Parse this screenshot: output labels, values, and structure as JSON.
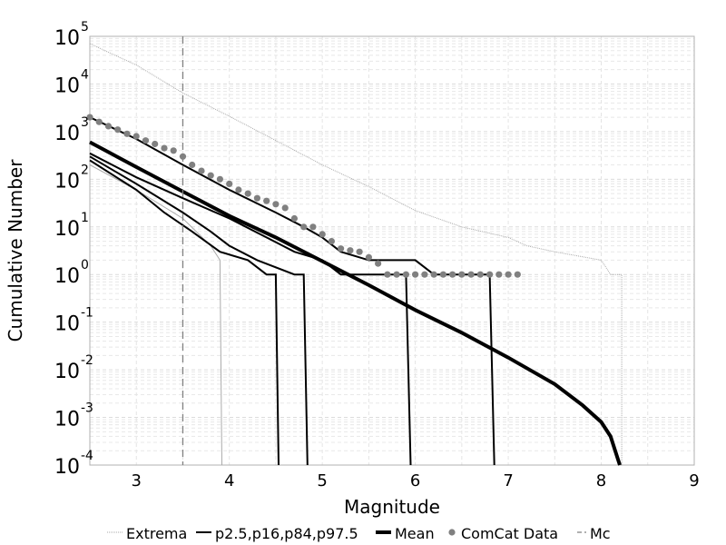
{
  "chart_data": {
    "type": "line",
    "title": "",
    "xlabel": "Magnitude",
    "ylabel": "Cumulative Number",
    "xlim": [
      2.5,
      9.0
    ],
    "ylim_log10": [
      -4,
      5
    ],
    "yscale": "log",
    "grid": true,
    "legend_placement": "bottom",
    "x_ticks": [
      "3",
      "4",
      "5",
      "6",
      "7",
      "8",
      "9"
    ],
    "y_ticks": [
      {
        "base": "10",
        "exp": "-4"
      },
      {
        "base": "10",
        "exp": "-3"
      },
      {
        "base": "10",
        "exp": "-2"
      },
      {
        "base": "10",
        "exp": "-1"
      },
      {
        "base": "10",
        "exp": "0"
      },
      {
        "base": "10",
        "exp": "1"
      },
      {
        "base": "10",
        "exp": "2"
      },
      {
        "base": "10",
        "exp": "3"
      },
      {
        "base": "10",
        "exp": "4"
      },
      {
        "base": "10",
        "exp": "5"
      }
    ],
    "legend": [
      "Extrema",
      "p2.5,p16,p84,p97.5",
      "Mean",
      "ComCat Data",
      "Mc"
    ],
    "colors": {
      "extrema": "#aaaaaa",
      "percentile": "#000000",
      "mean": "#000000",
      "comcat": "#808080",
      "mc": "#808080"
    },
    "mc": 3.5,
    "series": {
      "extrema_upper": [
        [
          2.5,
          70000
        ],
        [
          3.0,
          25000
        ],
        [
          3.5,
          6500
        ],
        [
          4.0,
          2100
        ],
        [
          4.5,
          650
        ],
        [
          5.0,
          200
        ],
        [
          5.5,
          70
        ],
        [
          6.0,
          22
        ],
        [
          6.5,
          10
        ],
        [
          7.0,
          6
        ],
        [
          7.2,
          4
        ],
        [
          7.5,
          3
        ],
        [
          8.0,
          2
        ],
        [
          8.1,
          1
        ],
        [
          8.22,
          1
        ],
        [
          8.22,
          0.0001
        ]
      ],
      "extrema_lower": [
        [
          2.5,
          200
        ],
        [
          3.0,
          60
        ],
        [
          3.5,
          15
        ],
        [
          3.8,
          4
        ],
        [
          3.9,
          2
        ],
        [
          3.92,
          0.0001
        ]
      ],
      "p97_5": [
        [
          2.5,
          2000
        ],
        [
          3.0,
          700
        ],
        [
          3.5,
          200
        ],
        [
          4.0,
          60
        ],
        [
          4.5,
          20
        ],
        [
          4.8,
          10
        ],
        [
          5.0,
          6
        ],
        [
          5.2,
          3
        ],
        [
          5.5,
          2
        ],
        [
          6.0,
          2
        ],
        [
          6.2,
          1
        ],
        [
          6.8,
          1
        ],
        [
          6.85,
          0.0001
        ]
      ],
      "p84": [
        [
          2.5,
          350
        ],
        [
          3.0,
          110
        ],
        [
          3.5,
          40
        ],
        [
          4.0,
          15
        ],
        [
          4.4,
          6
        ],
        [
          4.7,
          3
        ],
        [
          5.0,
          2
        ],
        [
          5.2,
          1
        ],
        [
          5.9,
          1
        ],
        [
          5.95,
          0.0001
        ]
      ],
      "p16": [
        [
          2.5,
          300
        ],
        [
          3.0,
          80
        ],
        [
          3.5,
          20
        ],
        [
          3.8,
          8
        ],
        [
          4.0,
          4
        ],
        [
          4.3,
          2
        ],
        [
          4.7,
          1
        ],
        [
          4.8,
          1
        ],
        [
          4.84,
          0.0001
        ]
      ],
      "p2_5": [
        [
          2.5,
          250
        ],
        [
          3.0,
          60
        ],
        [
          3.3,
          20
        ],
        [
          3.6,
          8
        ],
        [
          3.9,
          3
        ],
        [
          4.2,
          2
        ],
        [
          4.4,
          1
        ],
        [
          4.5,
          1
        ],
        [
          4.53,
          0.0001
        ]
      ],
      "mean": [
        [
          2.5,
          600
        ],
        [
          3.0,
          180
        ],
        [
          3.5,
          55
        ],
        [
          4.0,
          17
        ],
        [
          4.5,
          6
        ],
        [
          5.0,
          1.9
        ],
        [
          5.5,
          0.6
        ],
        [
          6.0,
          0.18
        ],
        [
          6.5,
          0.06
        ],
        [
          7.0,
          0.018
        ],
        [
          7.5,
          0.005
        ],
        [
          7.8,
          0.0018
        ],
        [
          8.0,
          0.0008
        ],
        [
          8.1,
          0.0004
        ],
        [
          8.15,
          0.0002
        ],
        [
          8.2,
          0.0001
        ]
      ],
      "comcat": [
        [
          2.5,
          2000
        ],
        [
          2.6,
          1600
        ],
        [
          2.7,
          1300
        ],
        [
          2.8,
          1100
        ],
        [
          2.9,
          900
        ],
        [
          3.0,
          800
        ],
        [
          3.1,
          650
        ],
        [
          3.2,
          550
        ],
        [
          3.3,
          450
        ],
        [
          3.4,
          400
        ],
        [
          3.5,
          300
        ],
        [
          3.6,
          200
        ],
        [
          3.7,
          150
        ],
        [
          3.8,
          120
        ],
        [
          3.9,
          100
        ],
        [
          4.0,
          80
        ],
        [
          4.1,
          60
        ],
        [
          4.2,
          50
        ],
        [
          4.3,
          40
        ],
        [
          4.4,
          35
        ],
        [
          4.5,
          30
        ],
        [
          4.6,
          25
        ],
        [
          4.7,
          15
        ],
        [
          4.8,
          10
        ],
        [
          4.9,
          10
        ],
        [
          5.0,
          7
        ],
        [
          5.1,
          5
        ],
        [
          5.2,
          3.5
        ],
        [
          5.3,
          3.2
        ],
        [
          5.4,
          3
        ],
        [
          5.5,
          2.3
        ],
        [
          5.6,
          1.7
        ],
        [
          5.7,
          1
        ],
        [
          5.8,
          1
        ],
        [
          5.9,
          1
        ],
        [
          6.0,
          1
        ],
        [
          6.1,
          1
        ],
        [
          6.2,
          1
        ],
        [
          6.3,
          1
        ],
        [
          6.4,
          1
        ],
        [
          6.5,
          1
        ],
        [
          6.6,
          1
        ],
        [
          6.7,
          1
        ],
        [
          6.8,
          1
        ],
        [
          6.9,
          1
        ],
        [
          7.0,
          1
        ],
        [
          7.1,
          1
        ]
      ]
    }
  }
}
